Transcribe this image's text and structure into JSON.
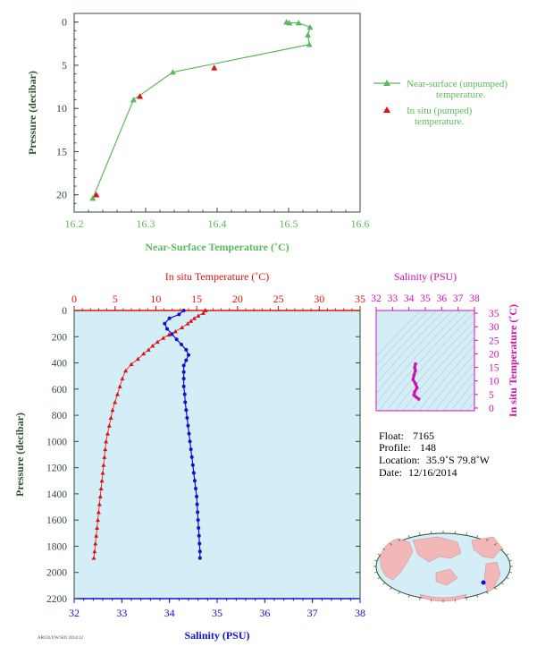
{
  "colors": {
    "green": "#5cb85c",
    "red": "#e01010",
    "blue": "#1010d0",
    "magenta": "#d010b0",
    "axis_dark": "#2f4f2f",
    "plot_bg": "#d4eef8"
  },
  "chart_data": [
    {
      "type": "scatter",
      "xlabel": "Near-Surface Temperature (˚C)",
      "ylabel": "Pressure (decibar)",
      "xlim": [
        16.2,
        16.6
      ],
      "ylim": [
        22,
        -1
      ],
      "xticks": [
        "16.2",
        "16.3",
        "16.4",
        "16.5",
        "16.6"
      ],
      "yticks": [
        "0",
        "5",
        "10",
        "15",
        "20"
      ],
      "legend": [
        {
          "label_line1": "Near-surface (unpumped)",
          "label_line2": "temperature.",
          "marker": "triangle-line",
          "color": "green"
        },
        {
          "label_line1": "In situ (pumped)",
          "label_line2": "temperature.",
          "marker": "triangle",
          "color": "red"
        }
      ],
      "legend_placement": "right-outside",
      "series": [
        {
          "name": "Near-surface (unpumped) temperature.",
          "line": true,
          "points": [
            [
              16.497,
              0.0
            ],
            [
              16.501,
              0.1
            ],
            [
              16.514,
              0.1
            ],
            [
              16.53,
              0.6
            ],
            [
              16.527,
              1.5
            ],
            [
              16.529,
              2.6
            ],
            [
              16.338,
              5.8
            ],
            [
              16.283,
              9.0
            ],
            [
              16.226,
              20.4
            ]
          ]
        },
        {
          "name": "In situ (pumped) temperature.",
          "line": false,
          "points": [
            [
              16.396,
              5.3
            ],
            [
              16.292,
              8.6
            ],
            [
              16.231,
              20.0
            ]
          ]
        }
      ]
    },
    {
      "type": "scatter",
      "top_xlabel": "In situ Temperature (˚C)",
      "bottom_xlabel": "Salinity (PSU)",
      "ylabel": "Pressure (decibar)",
      "temp_lim": [
        0,
        35
      ],
      "sal_lim": [
        32,
        38
      ],
      "ylim": [
        2200,
        0
      ],
      "temp_ticks": [
        "0",
        "5",
        "10",
        "15",
        "20",
        "25",
        "30",
        "35"
      ],
      "sal_ticks": [
        "32",
        "33",
        "34",
        "35",
        "36",
        "37",
        "38"
      ],
      "yticks": [
        "0",
        "200",
        "400",
        "600",
        "800",
        "1000",
        "1200",
        "1400",
        "1600",
        "1800",
        "2000",
        "2200"
      ],
      "series": [
        {
          "name": "In situ Temperature",
          "axis": "temperature",
          "points": [
            [
              16.1,
              0
            ],
            [
              15.8,
              20
            ],
            [
              15.2,
              40
            ],
            [
              14.7,
              60
            ],
            [
              14.3,
              80
            ],
            [
              13.9,
              100
            ],
            [
              13.2,
              130
            ],
            [
              12.4,
              160
            ],
            [
              11.6,
              185
            ],
            [
              10.9,
              210
            ],
            [
              10.2,
              240
            ],
            [
              9.6,
              270
            ],
            [
              9.1,
              300
            ],
            [
              8.5,
              330
            ],
            [
              7.8,
              370
            ],
            [
              7.0,
              410
            ],
            [
              6.3,
              460
            ],
            [
              5.9,
              520
            ],
            [
              5.6,
              580
            ],
            [
              5.3,
              640
            ],
            [
              5.0,
              700
            ],
            [
              4.7,
              760
            ],
            [
              4.5,
              820
            ],
            [
              4.3,
              880
            ],
            [
              4.1,
              940
            ],
            [
              3.9,
              1000
            ],
            [
              3.8,
              1060
            ],
            [
              3.7,
              1120
            ],
            [
              3.6,
              1180
            ],
            [
              3.5,
              1240
            ],
            [
              3.4,
              1300
            ],
            [
              3.3,
              1360
            ],
            [
              3.2,
              1420
            ],
            [
              3.1,
              1480
            ],
            [
              3.0,
              1540
            ],
            [
              2.9,
              1600
            ],
            [
              2.8,
              1660
            ],
            [
              2.7,
              1720
            ],
            [
              2.6,
              1780
            ],
            [
              2.5,
              1840
            ],
            [
              2.4,
              1890
            ]
          ]
        },
        {
          "name": "Salinity",
          "axis": "salinity",
          "points": [
            [
              34.3,
              0
            ],
            [
              34.2,
              30
            ],
            [
              34.0,
              60
            ],
            [
              33.9,
              100
            ],
            [
              33.95,
              140
            ],
            [
              34.05,
              180
            ],
            [
              34.15,
              220
            ],
            [
              34.25,
              260
            ],
            [
              34.35,
              300
            ],
            [
              34.4,
              340
            ],
            [
              34.35,
              380
            ],
            [
              34.3,
              420
            ],
            [
              34.3,
              470
            ],
            [
              34.3,
              520
            ],
            [
              34.3,
              580
            ],
            [
              34.32,
              640
            ],
            [
              34.33,
              700
            ],
            [
              34.35,
              760
            ],
            [
              34.37,
              820
            ],
            [
              34.39,
              880
            ],
            [
              34.41,
              940
            ],
            [
              34.43,
              1000
            ],
            [
              34.45,
              1060
            ],
            [
              34.47,
              1120
            ],
            [
              34.49,
              1180
            ],
            [
              34.51,
              1240
            ],
            [
              34.53,
              1300
            ],
            [
              34.55,
              1360
            ],
            [
              34.57,
              1420
            ],
            [
              34.58,
              1480
            ],
            [
              34.59,
              1540
            ],
            [
              34.6,
              1600
            ],
            [
              34.61,
              1660
            ],
            [
              34.62,
              1720
            ],
            [
              34.63,
              1780
            ],
            [
              34.64,
              1840
            ],
            [
              34.64,
              1890
            ]
          ]
        }
      ]
    },
    {
      "type": "scatter",
      "xlabel": "Salinity (PSU)",
      "ylabel": "In situ Temperature (˚C)",
      "xlim": [
        32,
        38
      ],
      "ylim": [
        -1,
        36
      ],
      "xticks": [
        "32",
        "33",
        "34",
        "35",
        "36",
        "37",
        "38"
      ],
      "yticks": [
        "0",
        "5",
        "10",
        "15",
        "20",
        "25",
        "30",
        "35"
      ],
      "points": [
        [
          34.4,
          16.3
        ],
        [
          34.35,
          15.0
        ],
        [
          34.4,
          13.8
        ],
        [
          34.3,
          12.0
        ],
        [
          34.25,
          10.5
        ],
        [
          34.4,
          9.0
        ],
        [
          34.5,
          7.5
        ],
        [
          34.35,
          6.0
        ],
        [
          34.3,
          4.8
        ],
        [
          34.45,
          4.0
        ],
        [
          34.6,
          3.3
        ]
      ]
    }
  ],
  "float_info": {
    "float_label": "Float:",
    "float_value": "7165",
    "profile_label": "Profile:",
    "profile_value": "148",
    "location_label": "Location:",
    "location_value": "35.9˚S  79.8˚W",
    "date_label": "Date:",
    "date_value": "12/16/2014"
  },
  "footer_text": "ARGO/UW/SIO 2014/12"
}
